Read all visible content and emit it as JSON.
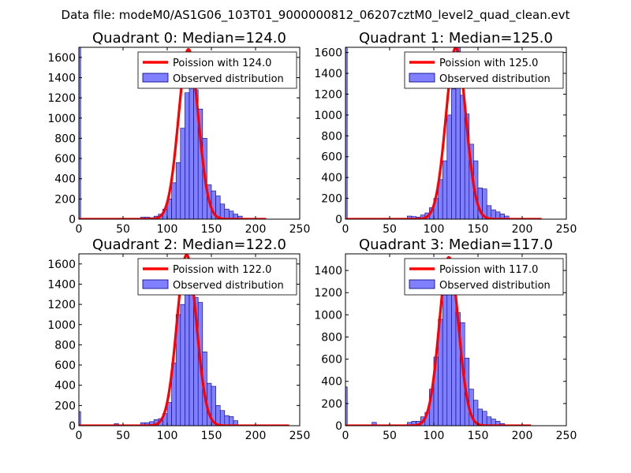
{
  "figure_title": "Data file: modeM0/AS1G06_103T01_9000000812_06207cztM0_level2_quad_clean.evt",
  "chart_data": [
    {
      "type": "bar",
      "title": "Quadrant 0: Median=124.0",
      "median": 124.0,
      "legend": [
        "Poission with 124.0",
        "Observed distribution"
      ],
      "xlim": [
        0,
        250
      ],
      "ylim": [
        0,
        1700
      ],
      "xticks": [
        0,
        50,
        100,
        150,
        200,
        250
      ],
      "yticks": [
        0,
        200,
        400,
        600,
        800,
        1000,
        1200,
        1400,
        1600
      ],
      "bin_width": 5,
      "first_bin": {
        "x0": 0,
        "x1": 2,
        "value": 1700
      },
      "bins": [
        {
          "x": 70,
          "value": 20
        },
        {
          "x": 75,
          "value": 20
        },
        {
          "x": 80,
          "value": 15
        },
        {
          "x": 85,
          "value": 30
        },
        {
          "x": 90,
          "value": 50
        },
        {
          "x": 95,
          "value": 100
        },
        {
          "x": 100,
          "value": 200
        },
        {
          "x": 105,
          "value": 360
        },
        {
          "x": 110,
          "value": 560
        },
        {
          "x": 115,
          "value": 900
        },
        {
          "x": 120,
          "value": 1250
        },
        {
          "x": 125,
          "value": 1650
        },
        {
          "x": 130,
          "value": 1280
        },
        {
          "x": 135,
          "value": 1090
        },
        {
          "x": 140,
          "value": 800
        },
        {
          "x": 145,
          "value": 340
        },
        {
          "x": 150,
          "value": 280
        },
        {
          "x": 155,
          "value": 230
        },
        {
          "x": 160,
          "value": 150
        },
        {
          "x": 165,
          "value": 100
        },
        {
          "x": 170,
          "value": 80
        },
        {
          "x": 175,
          "value": 50
        },
        {
          "x": 180,
          "value": 30
        }
      ],
      "poisson_peak": 1680,
      "poisson_xmax": 212
    },
    {
      "type": "bar",
      "title": "Quadrant 1: Median=125.0",
      "median": 125.0,
      "legend": [
        "Poission with 125.0",
        "Observed distribution"
      ],
      "xlim": [
        0,
        250
      ],
      "ylim": [
        0,
        1650
      ],
      "xticks": [
        0,
        50,
        100,
        150,
        200,
        250
      ],
      "yticks": [
        0,
        200,
        400,
        600,
        800,
        1000,
        1200,
        1400,
        1600
      ],
      "bin_width": 5,
      "first_bin": {
        "x0": 0,
        "x1": 2,
        "value": 1650
      },
      "bins": [
        {
          "x": 70,
          "value": 30
        },
        {
          "x": 75,
          "value": 25
        },
        {
          "x": 80,
          "value": 20
        },
        {
          "x": 85,
          "value": 40
        },
        {
          "x": 90,
          "value": 60
        },
        {
          "x": 95,
          "value": 110
        },
        {
          "x": 100,
          "value": 200
        },
        {
          "x": 105,
          "value": 380
        },
        {
          "x": 110,
          "value": 560
        },
        {
          "x": 115,
          "value": 1000
        },
        {
          "x": 120,
          "value": 1250
        },
        {
          "x": 125,
          "value": 1650
        },
        {
          "x": 130,
          "value": 1190
        },
        {
          "x": 135,
          "value": 1010
        },
        {
          "x": 140,
          "value": 720
        },
        {
          "x": 145,
          "value": 560
        },
        {
          "x": 150,
          "value": 300
        },
        {
          "x": 155,
          "value": 290
        },
        {
          "x": 160,
          "value": 130
        },
        {
          "x": 165,
          "value": 90
        },
        {
          "x": 170,
          "value": 70
        },
        {
          "x": 175,
          "value": 50
        },
        {
          "x": 180,
          "value": 30
        }
      ],
      "poisson_peak": 1650,
      "poisson_xmax": 222
    },
    {
      "type": "bar",
      "title": "Quadrant 2: Median=122.0",
      "median": 122.0,
      "legend": [
        "Poission with 122.0",
        "Observed distribution"
      ],
      "xlim": [
        0,
        250
      ],
      "ylim": [
        0,
        1700
      ],
      "xticks": [
        0,
        50,
        100,
        150,
        200,
        250
      ],
      "yticks": [
        0,
        200,
        400,
        600,
        800,
        1000,
        1200,
        1400,
        1600
      ],
      "bin_width": 5,
      "first_bin": {
        "x0": 0,
        "x1": 2,
        "value": 140
      },
      "bins": [
        {
          "x": 40,
          "value": 20
        },
        {
          "x": 70,
          "value": 30
        },
        {
          "x": 75,
          "value": 30
        },
        {
          "x": 80,
          "value": 40
        },
        {
          "x": 85,
          "value": 60
        },
        {
          "x": 90,
          "value": 70
        },
        {
          "x": 95,
          "value": 120
        },
        {
          "x": 100,
          "value": 230
        },
        {
          "x": 105,
          "value": 620
        },
        {
          "x": 110,
          "value": 1100
        },
        {
          "x": 115,
          "value": 1200
        },
        {
          "x": 120,
          "value": 1650
        },
        {
          "x": 125,
          "value": 1600
        },
        {
          "x": 130,
          "value": 1270
        },
        {
          "x": 135,
          "value": 1220
        },
        {
          "x": 140,
          "value": 730
        },
        {
          "x": 145,
          "value": 420
        },
        {
          "x": 150,
          "value": 390
        },
        {
          "x": 155,
          "value": 200
        },
        {
          "x": 160,
          "value": 150
        },
        {
          "x": 165,
          "value": 100
        },
        {
          "x": 170,
          "value": 90
        },
        {
          "x": 175,
          "value": 50
        }
      ],
      "poisson_peak": 1690,
      "poisson_xmax": 238
    },
    {
      "type": "bar",
      "title": "Quadrant 3: Median=117.0",
      "median": 117.0,
      "legend": [
        "Poission with 117.0",
        "Observed distribution"
      ],
      "xlim": [
        0,
        250
      ],
      "ylim": [
        0,
        1550
      ],
      "xticks": [
        0,
        50,
        100,
        150,
        200,
        250
      ],
      "yticks": [
        0,
        200,
        400,
        600,
        800,
        1000,
        1200,
        1400
      ],
      "bin_width": 5,
      "first_bin": {
        "x0": 0,
        "x1": 2,
        "value": 350
      },
      "bins": [
        {
          "x": 30,
          "value": 30
        },
        {
          "x": 70,
          "value": 30
        },
        {
          "x": 75,
          "value": 40
        },
        {
          "x": 80,
          "value": 40
        },
        {
          "x": 85,
          "value": 80
        },
        {
          "x": 90,
          "value": 120
        },
        {
          "x": 95,
          "value": 330
        },
        {
          "x": 100,
          "value": 620
        },
        {
          "x": 105,
          "value": 960
        },
        {
          "x": 110,
          "value": 1180
        },
        {
          "x": 115,
          "value": 1460
        },
        {
          "x": 120,
          "value": 1350
        },
        {
          "x": 125,
          "value": 1020
        },
        {
          "x": 130,
          "value": 930
        },
        {
          "x": 135,
          "value": 610
        },
        {
          "x": 140,
          "value": 330
        },
        {
          "x": 145,
          "value": 230
        },
        {
          "x": 150,
          "value": 150
        },
        {
          "x": 155,
          "value": 130
        },
        {
          "x": 160,
          "value": 80
        },
        {
          "x": 165,
          "value": 60
        },
        {
          "x": 170,
          "value": 40
        },
        {
          "x": 175,
          "value": 20
        }
      ],
      "poisson_peak": 1520,
      "poisson_xmax": 210
    }
  ],
  "colors": {
    "poisson_line": "#ff0000",
    "bar_fill": "#7f7fff",
    "bar_edge": "#000080",
    "axis": "#000000"
  }
}
